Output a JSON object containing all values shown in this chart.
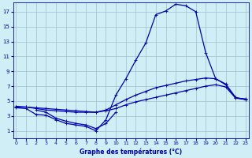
{
  "title": "Graphe des températures (°C)",
  "bg_color": "#d0eef5",
  "grid_color": "#a0c0cc",
  "line_color": "#0000bb",
  "x_ticks": [
    0,
    1,
    2,
    3,
    4,
    5,
    6,
    7,
    8,
    9,
    10,
    11,
    12,
    13,
    14,
    15,
    16,
    17,
    18,
    19,
    20,
    21,
    22,
    23
  ],
  "y_ticks": [
    1,
    3,
    5,
    7,
    9,
    11,
    13,
    15,
    17
  ],
  "xlim": [
    -0.3,
    23.3
  ],
  "ylim": [
    0.0,
    18.2
  ],
  "curve1_x": [
    0,
    1,
    2,
    3,
    4,
    5,
    6,
    7,
    8,
    9,
    10,
    11,
    12,
    13,
    14,
    15,
    16,
    17,
    18,
    19,
    20,
    21,
    22,
    23
  ],
  "curve1_y": [
    4.1,
    4.0,
    3.2,
    3.1,
    2.5,
    2.0,
    1.8,
    1.6,
    1.0,
    2.5,
    5.8,
    8.0,
    10.5,
    12.8,
    16.6,
    17.1,
    18.0,
    17.8,
    17.0,
    11.5,
    8.0,
    7.2,
    5.4,
    5.3
  ],
  "curve2_x": [
    0,
    1,
    2,
    3,
    4,
    5,
    6,
    7,
    8,
    9,
    10,
    11,
    12,
    13,
    14,
    15,
    16,
    17,
    18,
    19,
    20,
    21,
    22,
    23
  ],
  "curve2_y": [
    4.2,
    4.2,
    4.0,
    3.8,
    3.7,
    3.6,
    3.5,
    3.5,
    3.5,
    3.8,
    4.5,
    5.2,
    5.8,
    6.3,
    6.8,
    7.1,
    7.4,
    7.7,
    7.9,
    8.1,
    8.0,
    7.3,
    5.5,
    5.2
  ],
  "curve3_x": [
    0,
    1,
    2,
    3,
    4,
    5,
    6,
    7,
    8,
    9,
    10,
    11,
    12,
    13,
    14,
    15,
    16,
    17,
    18,
    19,
    20,
    21,
    22,
    23
  ],
  "curve3_y": [
    4.3,
    4.2,
    4.1,
    4.0,
    3.9,
    3.8,
    3.7,
    3.6,
    3.5,
    3.7,
    4.0,
    4.5,
    4.9,
    5.2,
    5.5,
    5.8,
    6.1,
    6.4,
    6.7,
    7.0,
    7.2,
    6.9,
    5.4,
    5.2
  ],
  "curve4_x": [
    2,
    3,
    4,
    5,
    6,
    7,
    8,
    9,
    10
  ],
  "curve4_y": [
    3.8,
    3.5,
    2.7,
    2.3,
    2.0,
    1.8,
    1.3,
    2.0,
    3.5
  ]
}
